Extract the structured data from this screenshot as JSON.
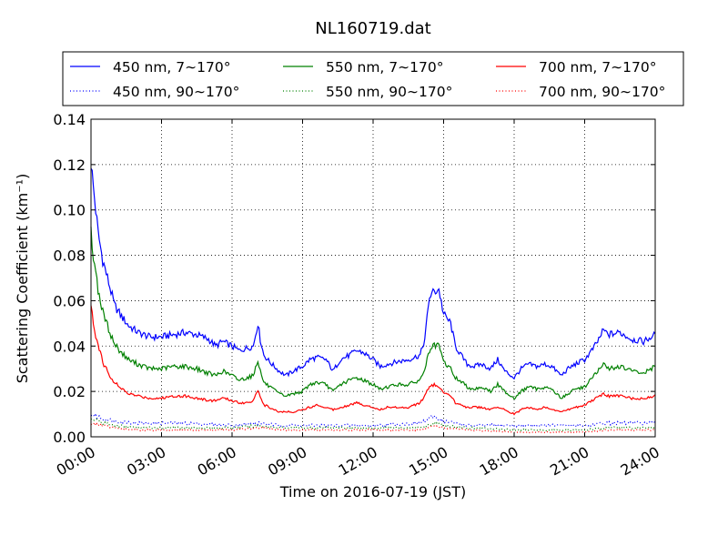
{
  "chart_data": {
    "type": "line",
    "title": "NL160719.dat",
    "xlabel": "Time on 2016-07-19 (JST)",
    "ylabel": "Scattering Coefficient (km⁻¹)",
    "xlim": [
      0,
      24
    ],
    "ylim": [
      0,
      0.14
    ],
    "xticks": [
      0,
      3,
      6,
      9,
      12,
      15,
      18,
      21,
      24
    ],
    "xtick_labels": [
      "00:00",
      "03:00",
      "06:00",
      "09:00",
      "12:00",
      "15:00",
      "18:00",
      "21:00",
      "24:00"
    ],
    "yticks": [
      0,
      0.02,
      0.04,
      0.06,
      0.08,
      0.1,
      0.12,
      0.14
    ],
    "ytick_labels": [
      "0.00",
      "0.02",
      "0.04",
      "0.06",
      "0.08",
      "0.10",
      "0.12",
      "0.14"
    ],
    "grid": true,
    "legend_position": "top",
    "series": [
      {
        "name": "450 nm, 7∼170°",
        "color": "#0000ff",
        "style": "solid",
        "x": [
          0,
          0.1,
          0.3,
          0.5,
          0.8,
          1.0,
          1.3,
          1.6,
          2.0,
          2.5,
          3.0,
          3.5,
          4.0,
          4.5,
          5.0,
          5.3,
          5.6,
          6.0,
          6.3,
          6.6,
          6.9,
          7.1,
          7.2,
          7.35,
          7.6,
          8.0,
          8.3,
          8.6,
          9.0,
          9.3,
          9.6,
          10.0,
          10.3,
          10.6,
          11.0,
          11.3,
          11.6,
          12.0,
          12.3,
          12.6,
          13.0,
          13.5,
          14.0,
          14.2,
          14.4,
          14.6,
          14.8,
          15.0,
          15.3,
          15.5,
          15.8,
          16.0,
          16.3,
          16.6,
          17.0,
          17.3,
          17.6,
          18.0,
          18.3,
          18.6,
          19.0,
          19.3,
          19.6,
          20.0,
          20.3,
          20.6,
          21.0,
          21.3,
          21.5,
          21.8,
          22.0,
          22.5,
          23.0,
          23.5,
          24.0
        ],
        "values": [
          0.121,
          0.11,
          0.09,
          0.078,
          0.066,
          0.058,
          0.053,
          0.049,
          0.046,
          0.044,
          0.044,
          0.045,
          0.046,
          0.045,
          0.043,
          0.04,
          0.042,
          0.04,
          0.038,
          0.039,
          0.04,
          0.05,
          0.043,
          0.036,
          0.033,
          0.029,
          0.027,
          0.029,
          0.031,
          0.034,
          0.035,
          0.034,
          0.029,
          0.034,
          0.036,
          0.038,
          0.037,
          0.034,
          0.031,
          0.032,
          0.033,
          0.034,
          0.036,
          0.043,
          0.062,
          0.064,
          0.065,
          0.054,
          0.05,
          0.04,
          0.035,
          0.032,
          0.031,
          0.032,
          0.03,
          0.034,
          0.029,
          0.026,
          0.03,
          0.032,
          0.031,
          0.032,
          0.031,
          0.027,
          0.03,
          0.032,
          0.034,
          0.038,
          0.041,
          0.047,
          0.045,
          0.046,
          0.043,
          0.042,
          0.045
        ]
      },
      {
        "name": "450 nm, 90∼170°",
        "color": "#0000ff",
        "style": "dotted",
        "x": [
          0,
          0.5,
          1.0,
          2.0,
          4.0,
          6.0,
          7.2,
          8.0,
          10.0,
          12.0,
          14.0,
          14.6,
          15.0,
          16.0,
          18.0,
          21.0,
          22.0,
          24.0
        ],
        "values": [
          0.01,
          0.008,
          0.007,
          0.006,
          0.006,
          0.005,
          0.006,
          0.005,
          0.005,
          0.005,
          0.006,
          0.009,
          0.007,
          0.005,
          0.005,
          0.005,
          0.006,
          0.006
        ]
      },
      {
        "name": "550 nm, 7∼170°",
        "color": "#008000",
        "style": "solid",
        "x": [
          0,
          0.1,
          0.3,
          0.5,
          0.8,
          1.0,
          1.3,
          1.6,
          2.0,
          2.5,
          3.0,
          3.5,
          4.0,
          4.5,
          5.0,
          5.3,
          5.6,
          6.0,
          6.3,
          6.6,
          6.9,
          7.1,
          7.2,
          7.35,
          7.6,
          8.0,
          8.3,
          8.6,
          9.0,
          9.3,
          9.6,
          10.0,
          10.3,
          10.6,
          11.0,
          11.3,
          11.6,
          12.0,
          12.3,
          12.6,
          13.0,
          13.5,
          14.0,
          14.2,
          14.4,
          14.6,
          14.8,
          15.0,
          15.3,
          15.5,
          15.8,
          16.0,
          16.3,
          16.6,
          17.0,
          17.3,
          17.6,
          18.0,
          18.3,
          18.6,
          19.0,
          19.3,
          19.6,
          20.0,
          20.3,
          20.6,
          21.0,
          21.3,
          21.5,
          21.8,
          22.0,
          22.5,
          23.0,
          23.5,
          24.0
        ],
        "values": [
          0.09,
          0.08,
          0.065,
          0.055,
          0.046,
          0.041,
          0.037,
          0.034,
          0.032,
          0.03,
          0.03,
          0.031,
          0.031,
          0.03,
          0.028,
          0.027,
          0.029,
          0.027,
          0.025,
          0.026,
          0.027,
          0.034,
          0.029,
          0.024,
          0.022,
          0.019,
          0.018,
          0.019,
          0.02,
          0.023,
          0.024,
          0.023,
          0.02,
          0.023,
          0.025,
          0.026,
          0.025,
          0.023,
          0.021,
          0.022,
          0.023,
          0.023,
          0.025,
          0.03,
          0.038,
          0.04,
          0.04,
          0.033,
          0.03,
          0.026,
          0.024,
          0.022,
          0.021,
          0.022,
          0.02,
          0.023,
          0.02,
          0.017,
          0.02,
          0.022,
          0.021,
          0.022,
          0.021,
          0.017,
          0.019,
          0.021,
          0.022,
          0.026,
          0.028,
          0.032,
          0.03,
          0.031,
          0.029,
          0.028,
          0.031
        ]
      },
      {
        "name": "550 nm, 90∼170°",
        "color": "#008000",
        "style": "dotted",
        "x": [
          0,
          0.5,
          1.0,
          2.0,
          4.0,
          6.0,
          7.2,
          8.0,
          10.0,
          12.0,
          14.0,
          14.6,
          15.0,
          16.0,
          18.0,
          21.0,
          22.0,
          24.0
        ],
        "values": [
          0.008,
          0.006,
          0.005,
          0.004,
          0.004,
          0.004,
          0.005,
          0.004,
          0.004,
          0.004,
          0.004,
          0.006,
          0.005,
          0.004,
          0.003,
          0.003,
          0.004,
          0.004
        ]
      },
      {
        "name": "700 nm, 7∼170°",
        "color": "#ff0000",
        "style": "solid",
        "x": [
          0,
          0.1,
          0.3,
          0.5,
          0.8,
          1.0,
          1.3,
          1.6,
          2.0,
          2.5,
          3.0,
          3.5,
          4.0,
          4.5,
          5.0,
          5.3,
          5.6,
          6.0,
          6.3,
          6.6,
          6.9,
          7.1,
          7.2,
          7.35,
          7.6,
          8.0,
          8.3,
          8.6,
          9.0,
          9.3,
          9.6,
          10.0,
          10.3,
          10.6,
          11.0,
          11.3,
          11.6,
          12.0,
          12.3,
          12.6,
          13.0,
          13.5,
          14.0,
          14.2,
          14.4,
          14.6,
          14.8,
          15.0,
          15.3,
          15.5,
          15.8,
          16.0,
          16.3,
          16.6,
          17.0,
          17.3,
          17.6,
          18.0,
          18.3,
          18.6,
          19.0,
          19.3,
          19.6,
          20.0,
          20.3,
          20.6,
          21.0,
          21.3,
          21.5,
          21.8,
          22.0,
          22.5,
          23.0,
          23.5,
          24.0
        ],
        "values": [
          0.057,
          0.05,
          0.04,
          0.033,
          0.027,
          0.024,
          0.021,
          0.019,
          0.018,
          0.017,
          0.017,
          0.018,
          0.018,
          0.017,
          0.016,
          0.016,
          0.017,
          0.016,
          0.015,
          0.015,
          0.016,
          0.021,
          0.017,
          0.014,
          0.013,
          0.011,
          0.011,
          0.011,
          0.012,
          0.013,
          0.014,
          0.013,
          0.012,
          0.013,
          0.014,
          0.015,
          0.014,
          0.013,
          0.012,
          0.013,
          0.013,
          0.013,
          0.015,
          0.018,
          0.022,
          0.023,
          0.022,
          0.019,
          0.018,
          0.015,
          0.014,
          0.013,
          0.013,
          0.013,
          0.012,
          0.013,
          0.012,
          0.01,
          0.012,
          0.013,
          0.012,
          0.013,
          0.012,
          0.011,
          0.012,
          0.013,
          0.014,
          0.016,
          0.017,
          0.019,
          0.018,
          0.018,
          0.017,
          0.017,
          0.018
        ]
      },
      {
        "name": "700 nm, 90∼170°",
        "color": "#ff0000",
        "style": "dotted",
        "x": [
          0,
          0.5,
          1.0,
          2.0,
          4.0,
          6.0,
          7.2,
          8.0,
          10.0,
          12.0,
          14.0,
          14.6,
          15.0,
          16.0,
          18.0,
          21.0,
          22.0,
          24.0
        ],
        "values": [
          0.006,
          0.005,
          0.004,
          0.003,
          0.003,
          0.003,
          0.004,
          0.003,
          0.003,
          0.003,
          0.003,
          0.005,
          0.004,
          0.003,
          0.002,
          0.002,
          0.003,
          0.003
        ]
      }
    ]
  }
}
